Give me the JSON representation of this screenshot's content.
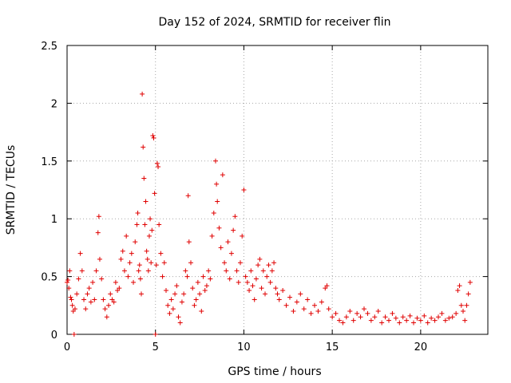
{
  "chart_data": {
    "type": "scatter",
    "title": "Day 152 of 2024, SRMTID for receiver flin",
    "xlabel": "GPS time / hours",
    "ylabel": "SRMTID / TECUs",
    "xlim": [
      0,
      23.8
    ],
    "ylim": [
      0,
      2.5
    ],
    "xticks": [
      0,
      5,
      10,
      15,
      20
    ],
    "xtick_labels": [
      "0",
      "5",
      "10",
      "15",
      "20"
    ],
    "yticks": [
      0,
      0.5,
      1,
      1.5,
      2,
      2.5
    ],
    "ytick_labels": [
      "0",
      "0.5",
      "1",
      "1.5",
      "2",
      "2.5"
    ],
    "grid": true,
    "marker": "plus",
    "series": [
      {
        "name": "SRMTID",
        "color": "#e00000",
        "points": [
          [
            0.0,
            0.45
          ],
          [
            0.05,
            0.47
          ],
          [
            0.1,
            0.4
          ],
          [
            0.15,
            0.55
          ],
          [
            0.2,
            0.32
          ],
          [
            0.25,
            0.3
          ],
          [
            0.3,
            0.25
          ],
          [
            0.35,
            0.2
          ],
          [
            0.4,
            0.0
          ],
          [
            0.45,
            0.22
          ],
          [
            0.55,
            0.35
          ],
          [
            0.65,
            0.48
          ],
          [
            0.75,
            0.7
          ],
          [
            0.85,
            0.55
          ],
          [
            0.95,
            0.3
          ],
          [
            1.05,
            0.22
          ],
          [
            1.15,
            0.35
          ],
          [
            1.25,
            0.4
          ],
          [
            1.35,
            0.28
          ],
          [
            1.45,
            0.45
          ],
          [
            1.55,
            0.3
          ],
          [
            1.65,
            0.55
          ],
          [
            1.75,
            0.88
          ],
          [
            1.8,
            1.02
          ],
          [
            1.85,
            0.65
          ],
          [
            1.95,
            0.48
          ],
          [
            2.05,
            0.3
          ],
          [
            2.15,
            0.22
          ],
          [
            2.25,
            0.15
          ],
          [
            2.35,
            0.25
          ],
          [
            2.45,
            0.35
          ],
          [
            2.55,
            0.3
          ],
          [
            2.65,
            0.28
          ],
          [
            2.75,
            0.45
          ],
          [
            2.85,
            0.38
          ],
          [
            2.95,
            0.4
          ],
          [
            3.05,
            0.65
          ],
          [
            3.15,
            0.72
          ],
          [
            3.25,
            0.55
          ],
          [
            3.35,
            0.85
          ],
          [
            3.45,
            0.5
          ],
          [
            3.55,
            0.62
          ],
          [
            3.65,
            0.7
          ],
          [
            3.75,
            0.45
          ],
          [
            3.85,
            0.8
          ],
          [
            3.95,
            0.95
          ],
          [
            4.0,
            1.05
          ],
          [
            4.05,
            0.55
          ],
          [
            4.1,
            0.6
          ],
          [
            4.15,
            0.48
          ],
          [
            4.2,
            0.35
          ],
          [
            4.25,
            2.08
          ],
          [
            4.3,
            1.62
          ],
          [
            4.35,
            1.35
          ],
          [
            4.4,
            0.95
          ],
          [
            4.45,
            1.15
          ],
          [
            4.5,
            0.72
          ],
          [
            4.55,
            0.65
          ],
          [
            4.6,
            0.55
          ],
          [
            4.65,
            0.85
          ],
          [
            4.7,
            1.0
          ],
          [
            4.75,
            0.62
          ],
          [
            4.8,
            0.9
          ],
          [
            4.85,
            1.72
          ],
          [
            4.9,
            1.7
          ],
          [
            4.95,
            1.22
          ],
          [
            5.0,
            0.0
          ],
          [
            5.05,
            0.6
          ],
          [
            5.1,
            1.48
          ],
          [
            5.15,
            1.45
          ],
          [
            5.2,
            0.95
          ],
          [
            5.3,
            0.7
          ],
          [
            5.4,
            0.5
          ],
          [
            5.5,
            0.62
          ],
          [
            5.6,
            0.38
          ],
          [
            5.7,
            0.25
          ],
          [
            5.8,
            0.18
          ],
          [
            5.9,
            0.3
          ],
          [
            6.0,
            0.22
          ],
          [
            6.1,
            0.35
          ],
          [
            6.2,
            0.42
          ],
          [
            6.3,
            0.15
          ],
          [
            6.4,
            0.1
          ],
          [
            6.5,
            0.28
          ],
          [
            6.6,
            0.35
          ],
          [
            6.7,
            0.55
          ],
          [
            6.8,
            0.5
          ],
          [
            6.85,
            1.2
          ],
          [
            6.9,
            0.8
          ],
          [
            7.0,
            0.62
          ],
          [
            7.1,
            0.4
          ],
          [
            7.2,
            0.25
          ],
          [
            7.3,
            0.3
          ],
          [
            7.4,
            0.45
          ],
          [
            7.5,
            0.35
          ],
          [
            7.6,
            0.2
          ],
          [
            7.7,
            0.5
          ],
          [
            7.8,
            0.38
          ],
          [
            7.9,
            0.42
          ],
          [
            8.0,
            0.55
          ],
          [
            8.1,
            0.48
          ],
          [
            8.2,
            0.85
          ],
          [
            8.3,
            1.05
          ],
          [
            8.4,
            1.5
          ],
          [
            8.45,
            1.3
          ],
          [
            8.5,
            1.15
          ],
          [
            8.6,
            0.92
          ],
          [
            8.7,
            0.75
          ],
          [
            8.8,
            1.38
          ],
          [
            8.9,
            0.62
          ],
          [
            9.0,
            0.55
          ],
          [
            9.1,
            0.8
          ],
          [
            9.2,
            0.48
          ],
          [
            9.3,
            0.7
          ],
          [
            9.4,
            0.9
          ],
          [
            9.5,
            1.02
          ],
          [
            9.6,
            0.55
          ],
          [
            9.7,
            0.45
          ],
          [
            9.8,
            0.62
          ],
          [
            9.9,
            0.85
          ],
          [
            10.0,
            1.25
          ],
          [
            10.1,
            0.5
          ],
          [
            10.2,
            0.45
          ],
          [
            10.3,
            0.38
          ],
          [
            10.4,
            0.55
          ],
          [
            10.5,
            0.42
          ],
          [
            10.6,
            0.3
          ],
          [
            10.7,
            0.48
          ],
          [
            10.8,
            0.6
          ],
          [
            10.9,
            0.65
          ],
          [
            11.0,
            0.4
          ],
          [
            11.1,
            0.55
          ],
          [
            11.2,
            0.35
          ],
          [
            11.3,
            0.5
          ],
          [
            11.4,
            0.6
          ],
          [
            11.5,
            0.45
          ],
          [
            11.6,
            0.55
          ],
          [
            11.7,
            0.62
          ],
          [
            11.8,
            0.4
          ],
          [
            11.9,
            0.35
          ],
          [
            12.0,
            0.3
          ],
          [
            12.2,
            0.38
          ],
          [
            12.4,
            0.25
          ],
          [
            12.6,
            0.32
          ],
          [
            12.8,
            0.2
          ],
          [
            13.0,
            0.28
          ],
          [
            13.2,
            0.35
          ],
          [
            13.4,
            0.22
          ],
          [
            13.6,
            0.3
          ],
          [
            13.8,
            0.18
          ],
          [
            14.0,
            0.25
          ],
          [
            14.2,
            0.2
          ],
          [
            14.4,
            0.28
          ],
          [
            14.6,
            0.4
          ],
          [
            14.7,
            0.42
          ],
          [
            14.8,
            0.22
          ],
          [
            15.0,
            0.15
          ],
          [
            15.2,
            0.18
          ],
          [
            15.4,
            0.12
          ],
          [
            15.6,
            0.1
          ],
          [
            15.8,
            0.15
          ],
          [
            16.0,
            0.2
          ],
          [
            16.2,
            0.12
          ],
          [
            16.4,
            0.18
          ],
          [
            16.6,
            0.15
          ],
          [
            16.8,
            0.22
          ],
          [
            17.0,
            0.18
          ],
          [
            17.2,
            0.12
          ],
          [
            17.4,
            0.15
          ],
          [
            17.6,
            0.2
          ],
          [
            17.8,
            0.1
          ],
          [
            18.0,
            0.15
          ],
          [
            18.2,
            0.12
          ],
          [
            18.4,
            0.18
          ],
          [
            18.6,
            0.14
          ],
          [
            18.8,
            0.1
          ],
          [
            19.0,
            0.15
          ],
          [
            19.2,
            0.12
          ],
          [
            19.4,
            0.16
          ],
          [
            19.6,
            0.1
          ],
          [
            19.8,
            0.14
          ],
          [
            20.0,
            0.12
          ],
          [
            20.2,
            0.16
          ],
          [
            20.4,
            0.1
          ],
          [
            20.6,
            0.14
          ],
          [
            20.8,
            0.12
          ],
          [
            21.0,
            0.15
          ],
          [
            21.2,
            0.18
          ],
          [
            21.4,
            0.12
          ],
          [
            21.6,
            0.14
          ],
          [
            21.8,
            0.15
          ],
          [
            22.0,
            0.18
          ],
          [
            22.1,
            0.38
          ],
          [
            22.2,
            0.42
          ],
          [
            22.3,
            0.25
          ],
          [
            22.4,
            0.2
          ],
          [
            22.5,
            0.12
          ],
          [
            22.6,
            0.25
          ],
          [
            22.7,
            0.35
          ],
          [
            22.8,
            0.45
          ]
        ]
      }
    ]
  }
}
